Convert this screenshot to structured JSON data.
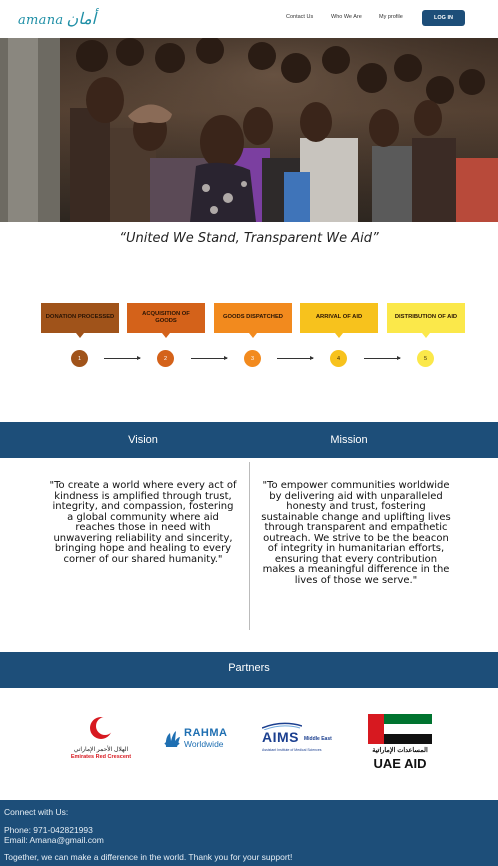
{
  "header": {
    "logo_latin": "amana",
    "logo_arabic": "أمان",
    "nav": [
      "Contact Us",
      "Who We Are",
      "My profile"
    ],
    "login_label": "LOG IN"
  },
  "tagline": "“United We Stand, Transparent We Aid”",
  "process": {
    "steps": [
      {
        "label": "DONATION PROCESSED",
        "number": "1",
        "box_color": "#a0531a",
        "circle_color": "#a0531a",
        "text_color": "#2a1404"
      },
      {
        "label": "ACQUISITION OF GOODS",
        "number": "2",
        "box_color": "#d4621a",
        "circle_color": "#d4621a",
        "text_color": "#2a1404"
      },
      {
        "label": "GOODS DISPATCHED",
        "number": "3",
        "box_color": "#f28a1e",
        "circle_color": "#f28a1e",
        "text_color": "#2a1404"
      },
      {
        "label": "ARRIVAL OF AID",
        "number": "4",
        "box_color": "#f7c21d",
        "circle_color": "#f7c21d",
        "text_color": "#2a1404"
      },
      {
        "label": "DISTRIBUTION OF AID",
        "number": "5",
        "box_color": "#fbe84a",
        "circle_color": "#fbe84a",
        "text_color": "#2a1404"
      }
    ]
  },
  "vision": {
    "title": "Vision",
    "text": "\"To create a world where every act of kindness is amplified through trust, integrity, and compassion, fostering a global community where aid reaches those in need with unwavering reliability and sincerity, bringing hope and healing to every corner of our shared humanity.\""
  },
  "mission": {
    "title": "Mission",
    "text": "\"To empower communities worldwide by delivering aid with unparalleled honesty and trust, fostering sustainable change and uplifting lives through transparent and empathetic outreach. We strive to be the beacon of integrity in humanitarian efforts, ensuring that every contribution makes a meaningful difference in the lives of those we serve.\""
  },
  "partners": {
    "title": "Partners",
    "erc_arabic": "الهلال الأحمر الإماراتي",
    "erc_english": "Emirates Red Crescent",
    "rahma_line1": "RAHMA",
    "rahma_line2": "Worldwide",
    "aims_title": "AIMS",
    "aims_region": "Middle East",
    "aims_sub": "Assistant Institute of Medical Sciences",
    "uae_arabic": "المساعدات الإماراتية",
    "uae_english": "UAE AID"
  },
  "footer": {
    "connect": "Connect with Us:",
    "phone": "Phone:  971-042821993",
    "email": "Email:  Amana@gmail.com",
    "thanks": "Together, we can make a difference in the world. Thank you for your support!"
  },
  "colors": {
    "primary": "#1d4e79",
    "erc_red": "#d71920",
    "rahma_blue": "#1f6fb2",
    "aims_blue": "#1b3f8f",
    "uae_green": "#00732f"
  }
}
